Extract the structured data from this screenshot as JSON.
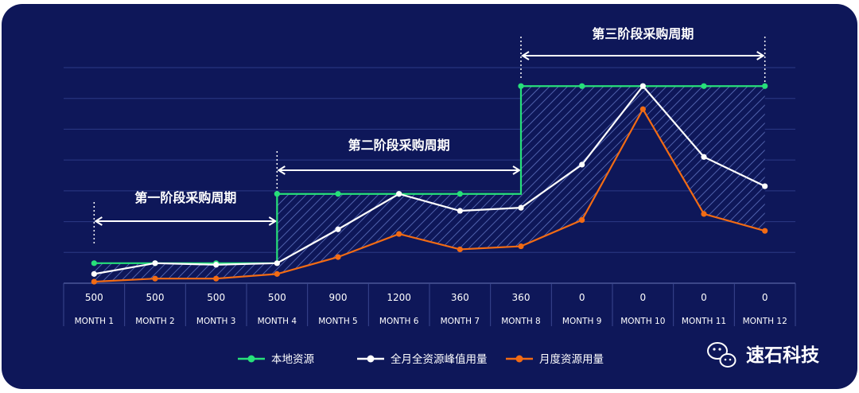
{
  "chart_data": {
    "type": "line",
    "categories": [
      "MONTH 1",
      "MONTH 2",
      "MONTH 3",
      "MONTH 4",
      "MONTH 5",
      "MONTH 6",
      "MONTH 7",
      "MONTH 8",
      "MONTH 9",
      "MONTH 10",
      "MONTH 11",
      "MONTH 12"
    ],
    "value_labels": [
      "500",
      "500",
      "500",
      "500",
      "900",
      "1200",
      "360",
      "360",
      "0",
      "0",
      "0",
      "0"
    ],
    "series": [
      {
        "name": "本地资源",
        "color": "#27e07a",
        "values": [
          0.65,
          0.65,
          0.65,
          2.9,
          2.9,
          2.9,
          2.9,
          6.4,
          6.4,
          6.4,
          6.4,
          6.4
        ]
      },
      {
        "name": "全月全资源峰值用量",
        "color": "#ffffff",
        "values": [
          0.3,
          0.65,
          0.6,
          0.65,
          1.75,
          2.9,
          2.35,
          2.45,
          3.85,
          6.4,
          4.1,
          3.15
        ]
      },
      {
        "name": "月度资源用量",
        "color": "#f26b14",
        "values": [
          0.05,
          0.15,
          0.15,
          0.3,
          0.85,
          1.6,
          1.1,
          1.2,
          2.05,
          5.65,
          2.25,
          1.7
        ]
      }
    ],
    "ylim": [
      0,
      7.0
    ],
    "grid": true,
    "legend_position": "bottom"
  },
  "phases": [
    {
      "label": "第一阶段采购周期",
      "from": 0,
      "to": 3
    },
    {
      "label": "第二阶段采购周期",
      "from": 3,
      "to": 7
    },
    {
      "label": "第三阶段采购周期",
      "from": 7,
      "to": 11
    }
  ],
  "brand": {
    "name": "速石科技",
    "icon": "wechat-icon"
  }
}
